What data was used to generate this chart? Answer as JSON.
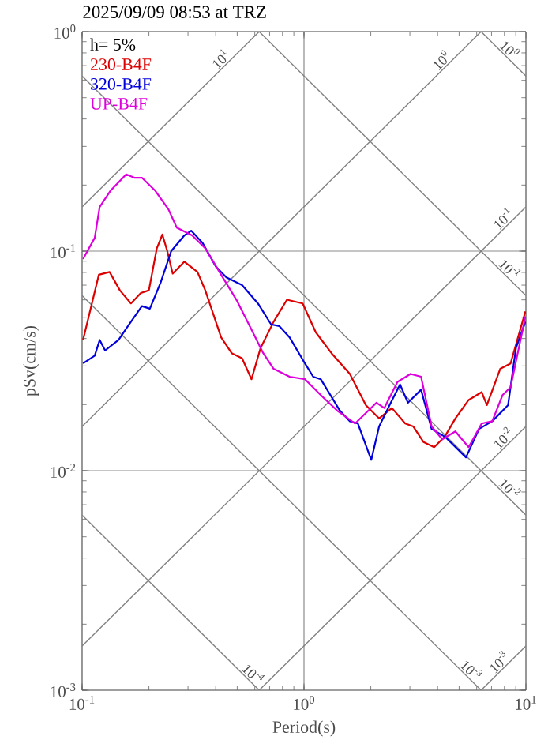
{
  "chart_data": {
    "type": "line",
    "title": "2025/09/09 08:53 at TRZ",
    "xlabel": "Period(s)",
    "ylabel": "pSv(cm/s)",
    "log": "xy",
    "grid": true,
    "legend": "top left",
    "xlim": [
      0.1,
      10
    ],
    "ylim": [
      0.001,
      1
    ],
    "xticks": [
      {
        "value": 0.1,
        "label": "10$^{-1}$"
      },
      {
        "value": 1,
        "label": "10$^{0}$"
      },
      {
        "value": 10,
        "label": "10$^{1}$"
      }
    ],
    "yticks": [
      {
        "value": 0.001,
        "label": "10$^{-3}$"
      },
      {
        "value": 0.01,
        "label": "10$^{-2}$"
      },
      {
        "value": 0.1,
        "label": "10$^{-1}$"
      },
      {
        "value": 1,
        "label": "10$^{0}$"
      }
    ],
    "series": [
      {
        "type": "line",
        "color": "#808080",
        "x": [
          0.1,
          0.628
        ],
        "values": [
          0.159,
          1
        ]
      },
      {
        "type": "line",
        "color": "#808080",
        "x": [
          0.1,
          6.28
        ],
        "values": [
          0.0159,
          1
        ]
      },
      {
        "type": "line",
        "color": "#808080",
        "x": [
          0.1,
          10
        ],
        "values": [
          0.00159,
          0.159
        ]
      },
      {
        "type": "line",
        "color": "#808080",
        "x": [
          0.628,
          10
        ],
        "values": [
          0.001,
          0.0159
        ]
      },
      {
        "type": "line",
        "color": "#808080",
        "x": [
          6.28,
          10
        ],
        "values": [
          0.001,
          0.00159
        ]
      },
      {
        "type": "line",
        "color": "#808080",
        "x": [
          6.28,
          10
        ],
        "values": [
          1,
          0.628
        ]
      },
      {
        "type": "line",
        "color": "#808080",
        "x": [
          0.628,
          10
        ],
        "values": [
          1,
          0.0628
        ]
      },
      {
        "type": "line",
        "color": "#808080",
        "x": [
          0.1,
          10
        ],
        "values": [
          0.628,
          0.00628
        ]
      },
      {
        "type": "line",
        "color": "#808080",
        "x": [
          0.1,
          6.28
        ],
        "values": [
          0.0628,
          0.001
        ]
      },
      {
        "type": "line",
        "color": "#808080",
        "x": [
          0.1,
          0.628
        ],
        "values": [
          0.00628,
          0.001
        ]
      },
      {
        "name": "230-B4F",
        "color": "#dd0000",
        "x": [
          0.101,
          0.119,
          0.133,
          0.148,
          0.166,
          0.184,
          0.2,
          0.217,
          0.23,
          0.242,
          0.256,
          0.289,
          0.331,
          0.359,
          0.423,
          0.472,
          0.526,
          0.58,
          0.637,
          0.73,
          0.838,
          0.986,
          1.13,
          1.33,
          1.61,
          1.9,
          2.18,
          2.49,
          2.86,
          3.11,
          3.46,
          3.86,
          4.31,
          4.81,
          5.52,
          6.32,
          6.67,
          7.66,
          8.53,
          9.95
        ],
        "values": [
          0.0394,
          0.0781,
          0.0804,
          0.0663,
          0.0578,
          0.0645,
          0.0663,
          0.1028,
          0.119,
          0.1,
          0.079,
          0.0896,
          0.0804,
          0.0663,
          0.0405,
          0.0343,
          0.0325,
          0.0261,
          0.0362,
          0.0477,
          0.0601,
          0.0578,
          0.0427,
          0.0343,
          0.0276,
          0.0199,
          0.0173,
          0.0193,
          0.0164,
          0.0159,
          0.0135,
          0.0128,
          0.0143,
          0.0173,
          0.021,
          0.0228,
          0.0199,
          0.0291,
          0.0308,
          0.0532
        ]
      },
      {
        "name": "320-B4F",
        "color": "#0000dd",
        "x": [
          0.101,
          0.114,
          0.12,
          0.127,
          0.146,
          0.163,
          0.186,
          0.202,
          0.226,
          0.252,
          0.289,
          0.31,
          0.349,
          0.401,
          0.447,
          0.526,
          0.62,
          0.711,
          0.773,
          0.861,
          1.01,
          1.1,
          1.19,
          1.45,
          1.61,
          1.75,
          2.01,
          2.18,
          2.43,
          2.71,
          2.94,
          3.37,
          3.76,
          4.31,
          5.37,
          6.15,
          7.05,
          8.31,
          9.02,
          9.95
        ],
        "values": [
          0.0308,
          0.0334,
          0.0394,
          0.0353,
          0.0394,
          0.0464,
          0.0562,
          0.0547,
          0.072,
          0.1,
          0.118,
          0.124,
          0.109,
          0.0849,
          0.076,
          0.07,
          0.0578,
          0.0464,
          0.0456,
          0.0405,
          0.0308,
          0.0268,
          0.0261,
          0.0188,
          0.0168,
          0.0164,
          0.0112,
          0.0159,
          0.0199,
          0.0247,
          0.0204,
          0.0234,
          0.0155,
          0.0143,
          0.0115,
          0.0155,
          0.0168,
          0.0199,
          0.0362,
          0.0477
        ]
      },
      {
        "name": "UP-B4F",
        "color": "#dd00dd",
        "x": [
          0.101,
          0.114,
          0.12,
          0.134,
          0.158,
          0.172,
          0.186,
          0.214,
          0.245,
          0.267,
          0.313,
          0.359,
          0.423,
          0.499,
          0.588,
          0.655,
          0.73,
          0.861,
          1.01,
          1.19,
          1.41,
          1.7,
          1.9,
          2.12,
          2.3,
          2.64,
          3.02,
          3.37,
          3.76,
          4.2,
          4.81,
          5.52,
          6.32,
          7.05,
          7.85,
          8.53,
          9.95
        ],
        "values": [
          0.092,
          0.115,
          0.159,
          0.188,
          0.224,
          0.216,
          0.216,
          0.188,
          0.155,
          0.128,
          0.118,
          0.103,
          0.0781,
          0.0594,
          0.0427,
          0.0343,
          0.0291,
          0.0268,
          0.0261,
          0.0221,
          0.0188,
          0.0164,
          0.0183,
          0.0204,
          0.0193,
          0.0254,
          0.0276,
          0.0268,
          0.0159,
          0.0139,
          0.0151,
          0.0128,
          0.0164,
          0.0168,
          0.0221,
          0.024,
          0.0504
        ]
      }
    ],
    "annotations": [
      "h= 5%",
      {
        "text": "10$^{1}$",
        "x": 0.445,
        "y": 0.708
      },
      {
        "text": "10$^{0}$",
        "x": 4.4,
        "y": 0.7
      },
      {
        "text": "10$^{-1}$",
        "x": 8.35,
        "y": 0.133
      },
      {
        "text": "10$^{-2}$",
        "x": 8.35,
        "y": 0.0133
      },
      {
        "text": "10$^{-3}$",
        "x": 8.0,
        "y": 0.00127
      },
      {
        "text": "10$^{0}$",
        "x": 8.0,
        "y": 0.785
      },
      {
        "text": "10$^{-1}$",
        "x": 8.0,
        "y": 0.0785
      },
      {
        "text": "10$^{-2}$",
        "x": 8.0,
        "y": 0.00785
      },
      {
        "text": "10$^{-3}$",
        "x": 5.37,
        "y": 0.00117
      },
      {
        "text": "10$^{-4}$",
        "x": 0.558,
        "y": 0.001125
      }
    ]
  }
}
